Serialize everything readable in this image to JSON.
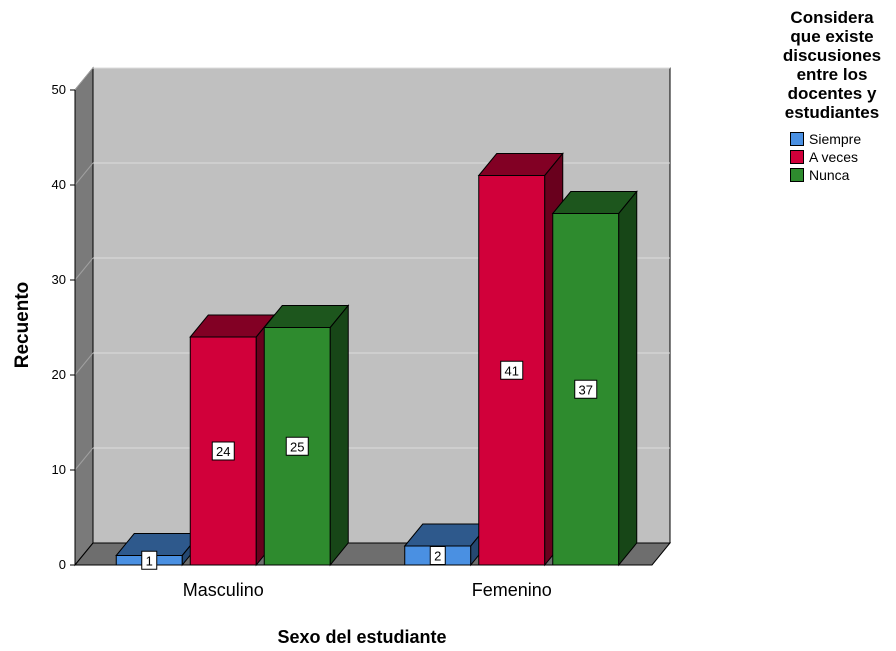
{
  "chart_data": {
    "type": "bar",
    "categories": [
      "Masculino",
      "Femenino"
    ],
    "series": [
      {
        "name": "Siempre",
        "values": [
          1,
          2
        ],
        "color": "#4a90e2"
      },
      {
        "name": "A veces",
        "values": [
          24,
          41
        ],
        "color": "#d1003a"
      },
      {
        "name": "Nunca",
        "values": [
          25,
          37
        ],
        "color": "#2e8b2e"
      }
    ],
    "xlabel": "Sexo del estudiante",
    "ylabel": "Recuento",
    "ylim": [
      0,
      50
    ],
    "yticks": [
      0,
      10,
      20,
      30,
      40,
      50
    ],
    "legend_title": "Considera que existe discusiones entre los docentes y estudiantes",
    "legend_title_lines": [
      "Considera",
      "que existe",
      "discusiones",
      "entre los",
      "docentes y",
      "estudiantes"
    ],
    "legend_position": "top-right",
    "grid": true,
    "style": "3d"
  }
}
